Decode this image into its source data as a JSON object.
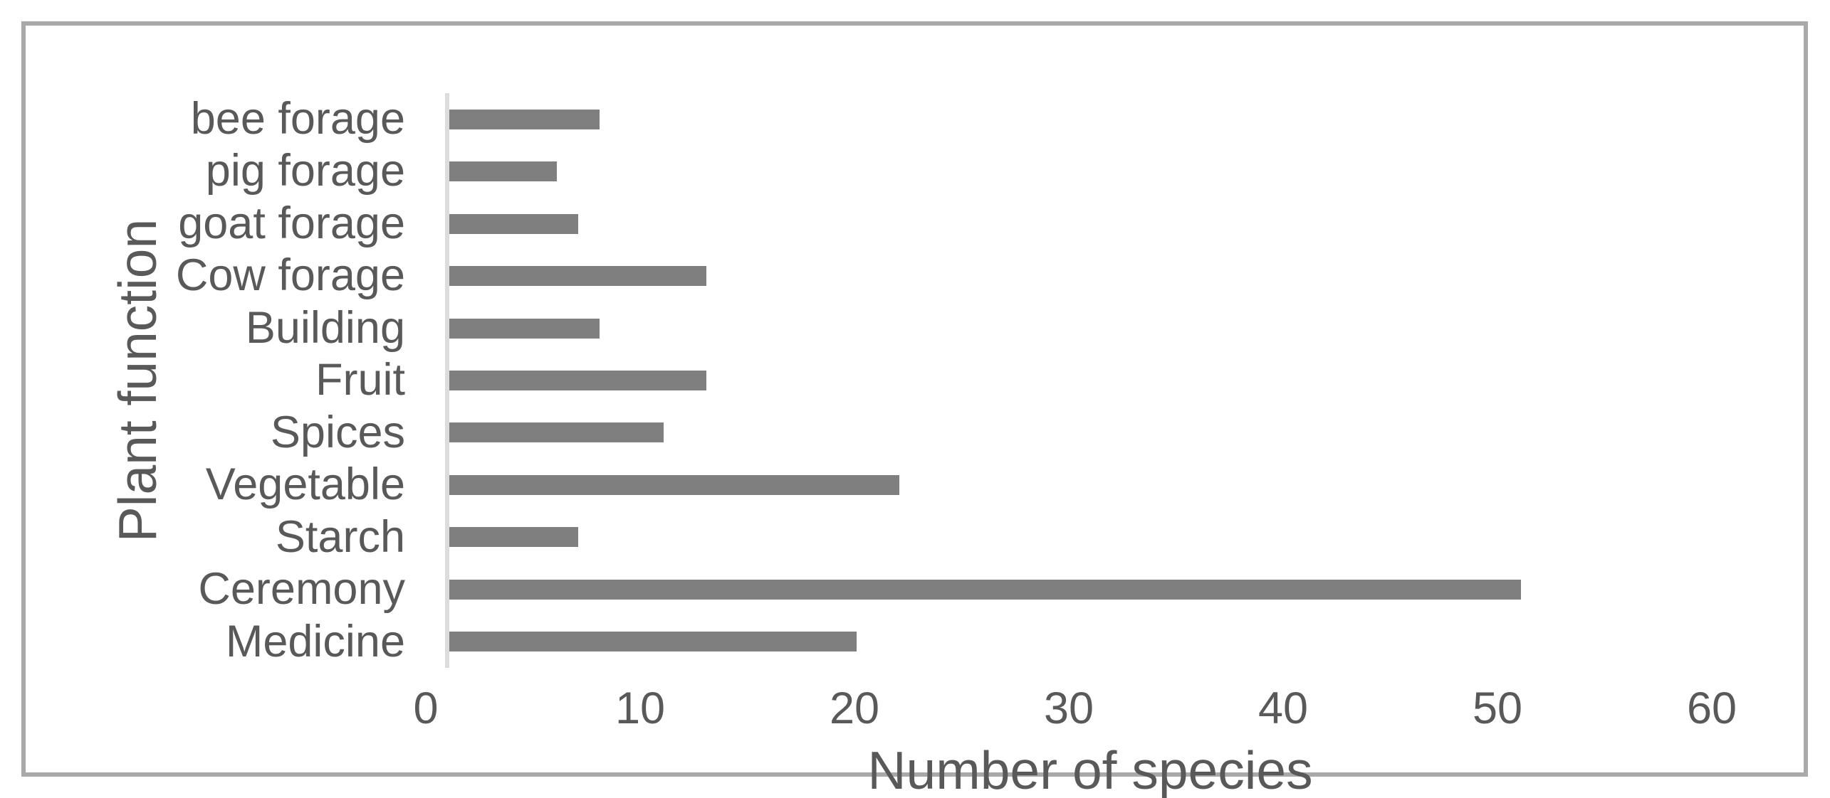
{
  "chart_data": {
    "type": "bar",
    "orientation": "horizontal",
    "title": "",
    "xlabel": "Number of species",
    "ylabel": "Plant function",
    "categories": [
      "bee forage",
      "pig forage",
      "goat forage",
      "Cow forage",
      "Building",
      "Fruit",
      "Spices",
      "Vegetable",
      "Starch",
      "Ceremony",
      "Medicine"
    ],
    "values": [
      7,
      5,
      6,
      12,
      7,
      12,
      10,
      21,
      6,
      50,
      19
    ],
    "xlim": [
      0,
      60
    ],
    "xticks": [
      0,
      10,
      20,
      30,
      40,
      50,
      60
    ],
    "grid": false,
    "legend": "none",
    "bar_color": "#7f7f7f",
    "text_color": "#595959",
    "axis_line_color": "#dcdcdc",
    "frame_border_color": "#a9a9a9"
  }
}
